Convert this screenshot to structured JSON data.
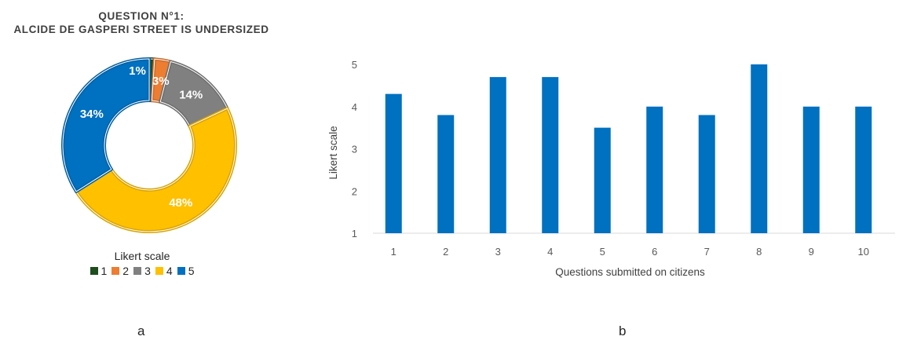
{
  "chart_data": [
    {
      "type": "pie",
      "title_lines": [
        "QUESTION N°1:",
        "ALCIDE DE GASPERI STREET IS UNDERSIZED"
      ],
      "legend_title": "Likert scale",
      "categories": [
        "1",
        "2",
        "3",
        "4",
        "5"
      ],
      "values": [
        1,
        3,
        14,
        48,
        34
      ],
      "labels": [
        "1%",
        "3%",
        "14%",
        "48%",
        "34%"
      ],
      "colors": [
        "#1e4d1e",
        "#ed7d31",
        "#808080",
        "#ffc000",
        "#0070c0"
      ],
      "legend_position": "bottom"
    },
    {
      "type": "bar",
      "categories": [
        "1",
        "2",
        "3",
        "4",
        "5",
        "6",
        "7",
        "8",
        "9",
        "10"
      ],
      "values": [
        4.3,
        3.8,
        4.7,
        4.7,
        3.5,
        4.0,
        3.8,
        5.0,
        4.0,
        4.0
      ],
      "xlabel": "Questions submitted on citizens",
      "ylabel": "Likert scale",
      "ylim": [
        1,
        5
      ],
      "yticks": [
        "1",
        "2",
        "3",
        "4",
        "5"
      ],
      "grid": false,
      "color": "#0070c0"
    }
  ],
  "panel_labels": [
    "a",
    "b"
  ]
}
